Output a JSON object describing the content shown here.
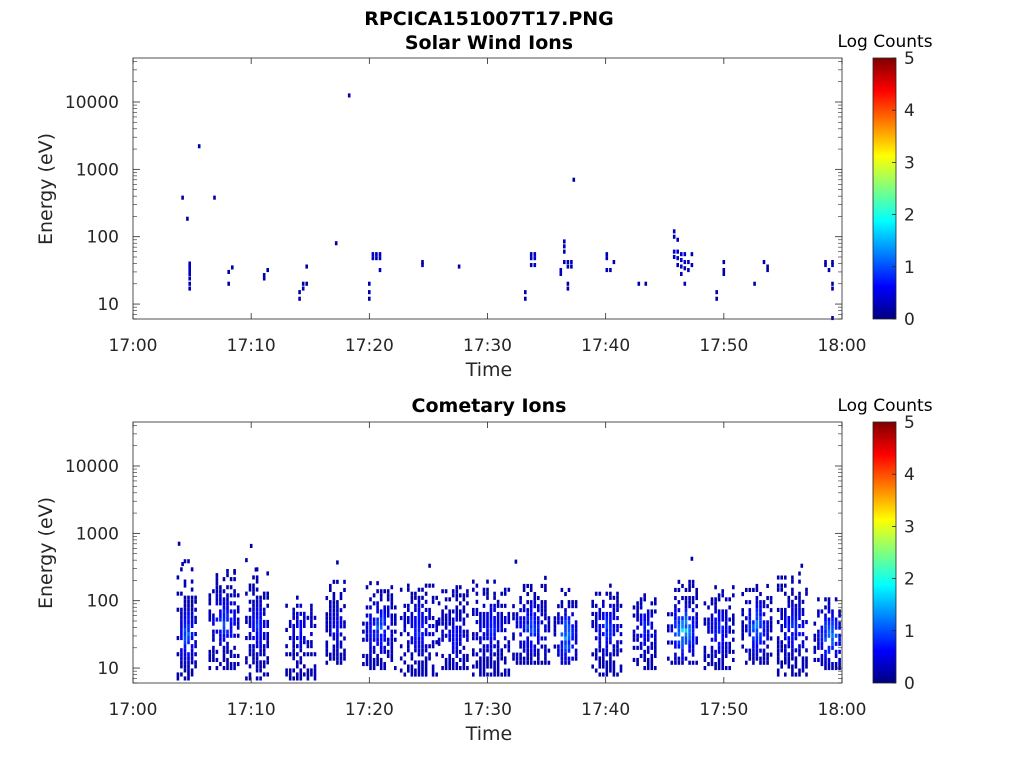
{
  "figure": {
    "title": "RPCICA151007T17.PNG"
  },
  "colorbar": {
    "stops": [
      "#00007f",
      "#0000ff",
      "#007fff",
      "#00ffff",
      "#7fff7f",
      "#ffff00",
      "#ff7f00",
      "#ff0000",
      "#7f0000"
    ]
  },
  "chart_data": [
    {
      "type": "heatmap",
      "title": "Solar Wind Ions",
      "xlabel": "Time",
      "ylabel": "Energy (eV)",
      "x_range_minutes_after_1700": [
        0,
        60
      ],
      "xticks": [
        "17:00",
        "17:10",
        "17:20",
        "17:30",
        "17:40",
        "17:50",
        "18:00"
      ],
      "xtick_values": [
        0,
        10,
        20,
        30,
        40,
        50,
        60
      ],
      "yscale": "log",
      "yrange": [
        6,
        45000
      ],
      "yticks": [
        "10",
        "100",
        "1000",
        "10000"
      ],
      "ytick_values": [
        10,
        100,
        1000,
        10000
      ],
      "colorbar": {
        "label": "Log Counts",
        "range": [
          0,
          5
        ],
        "ticks": [
          "0",
          "1",
          "2",
          "3",
          "4",
          "5"
        ],
        "tick_values": [
          0,
          1,
          2,
          3,
          4,
          5
        ]
      },
      "pixels_time_min_energy_eV_logcount": [
        [
          18.3,
          12500,
          0.2
        ],
        [
          5.6,
          2200,
          0.2
        ],
        [
          37.3,
          700,
          0.2
        ],
        [
          4.2,
          380,
          0.2
        ],
        [
          6.9,
          380,
          0.2
        ],
        [
          4.6,
          185,
          0.2
        ],
        [
          17.2,
          80,
          0.2
        ],
        [
          4.8,
          40,
          0.3
        ],
        [
          4.8,
          36,
          0.3
        ],
        [
          4.8,
          32,
          0.3
        ],
        [
          4.8,
          28,
          0.3
        ],
        [
          4.8,
          24,
          0.3
        ],
        [
          4.8,
          20,
          0.3
        ],
        [
          4.8,
          17,
          0.3
        ],
        [
          8.1,
          30,
          0.2
        ],
        [
          8.1,
          20,
          0.2
        ],
        [
          8.4,
          35,
          0.2
        ],
        [
          11.1,
          27,
          0.2
        ],
        [
          11.1,
          24,
          0.2
        ],
        [
          11.4,
          32,
          0.2
        ],
        [
          14.1,
          15,
          0.2
        ],
        [
          14.1,
          12,
          0.2
        ],
        [
          14.4,
          20,
          0.2
        ],
        [
          14.4,
          17,
          0.2
        ],
        [
          14.7,
          20,
          0.2
        ],
        [
          14.7,
          36,
          0.2
        ],
        [
          20.0,
          20,
          0.2
        ],
        [
          20.0,
          15,
          0.2
        ],
        [
          20.0,
          12,
          0.2
        ],
        [
          20.3,
          55,
          0.3
        ],
        [
          20.6,
          55,
          0.3
        ],
        [
          20.9,
          55,
          0.3
        ],
        [
          20.9,
          48,
          0.3
        ],
        [
          20.6,
          48,
          0.3
        ],
        [
          20.3,
          48,
          0.3
        ],
        [
          20.9,
          32,
          0.3
        ],
        [
          24.5,
          42,
          0.2
        ],
        [
          24.5,
          38,
          0.2
        ],
        [
          27.6,
          36,
          0.2
        ],
        [
          33.2,
          15,
          0.2
        ],
        [
          33.2,
          12,
          0.2
        ],
        [
          33.7,
          55,
          0.3
        ],
        [
          34.0,
          55,
          0.3
        ],
        [
          33.7,
          48,
          0.3
        ],
        [
          34.0,
          48,
          0.3
        ],
        [
          33.7,
          38,
          0.3
        ],
        [
          34.0,
          38,
          0.3
        ],
        [
          36.5,
          85,
          0.3
        ],
        [
          36.5,
          72,
          0.3
        ],
        [
          36.5,
          60,
          0.3
        ],
        [
          36.2,
          32,
          0.3
        ],
        [
          36.2,
          28,
          0.3
        ],
        [
          36.5,
          42,
          0.3
        ],
        [
          36.8,
          42,
          0.3
        ],
        [
          37.1,
          42,
          0.3
        ],
        [
          36.8,
          36,
          0.3
        ],
        [
          37.1,
          36,
          0.3
        ],
        [
          36.8,
          20,
          0.2
        ],
        [
          36.8,
          17,
          0.2
        ],
        [
          40.1,
          55,
          0.3
        ],
        [
          40.1,
          48,
          0.3
        ],
        [
          40.1,
          32,
          0.3
        ],
        [
          40.4,
          32,
          0.3
        ],
        [
          40.7,
          42,
          0.2
        ],
        [
          42.8,
          20,
          0.2
        ],
        [
          43.4,
          20,
          0.2
        ],
        [
          45.8,
          120,
          0.3
        ],
        [
          45.8,
          100,
          0.3
        ],
        [
          46.1,
          90,
          0.3
        ],
        [
          45.8,
          60,
          0.4
        ],
        [
          46.1,
          60,
          0.4
        ],
        [
          46.4,
          55,
          0.4
        ],
        [
          45.8,
          50,
          0.4
        ],
        [
          46.1,
          48,
          0.4
        ],
        [
          46.4,
          45,
          0.4
        ],
        [
          46.7,
          42,
          0.4
        ],
        [
          46.1,
          38,
          0.3
        ],
        [
          46.4,
          36,
          0.3
        ],
        [
          46.7,
          34,
          0.3
        ],
        [
          47.0,
          32,
          0.3
        ],
        [
          46.4,
          28,
          0.3
        ],
        [
          46.7,
          20,
          0.3
        ],
        [
          46.7,
          55,
          0.3
        ],
        [
          47.0,
          42,
          0.3
        ],
        [
          47.3,
          38,
          0.3
        ],
        [
          47.3,
          55,
          0.3
        ],
        [
          49.4,
          15,
          0.2
        ],
        [
          49.4,
          12,
          0.2
        ],
        [
          50.0,
          42,
          0.2
        ],
        [
          50.0,
          32,
          0.2
        ],
        [
          50.0,
          28,
          0.2
        ],
        [
          52.6,
          20,
          0.2
        ],
        [
          53.4,
          42,
          0.2
        ],
        [
          53.7,
          36,
          0.2
        ],
        [
          53.7,
          32,
          0.2
        ],
        [
          58.6,
          42,
          0.2
        ],
        [
          58.6,
          38,
          0.2
        ],
        [
          59.2,
          42,
          0.2
        ],
        [
          59.2,
          38,
          0.2
        ],
        [
          58.9,
          32,
          0.2
        ],
        [
          59.2,
          20,
          0.2
        ],
        [
          59.2,
          17,
          0.2
        ],
        [
          59.2,
          6.2,
          0.2
        ]
      ]
    },
    {
      "type": "heatmap",
      "title": "Cometary Ions",
      "xlabel": "Time",
      "ylabel": "Energy (eV)",
      "x_range_minutes_after_1700": [
        0,
        60
      ],
      "xticks": [
        "17:00",
        "17:10",
        "17:20",
        "17:30",
        "17:40",
        "17:50",
        "18:00"
      ],
      "xtick_values": [
        0,
        10,
        20,
        30,
        40,
        50,
        60
      ],
      "yscale": "log",
      "yrange": [
        6,
        45000
      ],
      "yticks": [
        "10",
        "100",
        "1000",
        "10000"
      ],
      "ytick_values": [
        10,
        100,
        1000,
        10000
      ],
      "colorbar": {
        "label": "Log Counts",
        "range": [
          0,
          5
        ],
        "ticks": [
          "0",
          "1",
          "2",
          "3",
          "4",
          "5"
        ],
        "tick_values": [
          0,
          1,
          2,
          3,
          4,
          5
        ]
      },
      "burst_clusters": [
        {
          "t": 4.6,
          "w": 0.8,
          "emin": 7,
          "emax": 420,
          "peak": 1.3,
          "core": 30
        },
        {
          "t": 7.8,
          "w": 1.3,
          "emin": 10,
          "emax": 320,
          "peak": 1.0,
          "core": 50
        },
        {
          "t": 10.6,
          "w": 1.0,
          "emin": 7,
          "emax": 300,
          "peak": 0.8,
          "core": 40
        },
        {
          "t": 14.2,
          "w": 1.2,
          "emin": 7,
          "emax": 120,
          "peak": 0.5,
          "core": 40
        },
        {
          "t": 17.2,
          "w": 0.8,
          "emin": 12,
          "emax": 200,
          "peak": 0.5,
          "core": 40
        },
        {
          "t": 20.9,
          "w": 1.4,
          "emin": 10,
          "emax": 200,
          "peak": 1.0,
          "core": 40
        },
        {
          "t": 24.2,
          "w": 1.5,
          "emin": 8,
          "emax": 220,
          "peak": 0.8,
          "core": 40
        },
        {
          "t": 27.2,
          "w": 1.3,
          "emin": 10,
          "emax": 180,
          "peak": 0.5,
          "core": 30
        },
        {
          "t": 30.4,
          "w": 1.6,
          "emin": 8,
          "emax": 220,
          "peak": 0.7,
          "core": 40
        },
        {
          "t": 33.7,
          "w": 1.5,
          "emin": 12,
          "emax": 220,
          "peak": 1.0,
          "core": 40
        },
        {
          "t": 36.7,
          "w": 1.0,
          "emin": 12,
          "emax": 160,
          "peak": 1.5,
          "core": 30
        },
        {
          "t": 40.2,
          "w": 1.3,
          "emin": 8,
          "emax": 180,
          "peak": 0.9,
          "core": 40
        },
        {
          "t": 43.4,
          "w": 1.0,
          "emin": 10,
          "emax": 130,
          "peak": 0.7,
          "core": 40
        },
        {
          "t": 46.6,
          "w": 1.3,
          "emin": 12,
          "emax": 200,
          "peak": 1.9,
          "core": 35
        },
        {
          "t": 49.6,
          "w": 1.2,
          "emin": 10,
          "emax": 180,
          "peak": 0.8,
          "core": 35
        },
        {
          "t": 52.8,
          "w": 1.2,
          "emin": 12,
          "emax": 200,
          "peak": 1.3,
          "core": 40
        },
        {
          "t": 55.9,
          "w": 1.3,
          "emin": 8,
          "emax": 280,
          "peak": 0.8,
          "core": 40
        },
        {
          "t": 59.0,
          "w": 1.3,
          "emin": 10,
          "emax": 130,
          "peak": 1.4,
          "core": 30
        }
      ],
      "sparse_pixels_time_min_energy_eV_logcount": [
        [
          3.9,
          700,
          0.2
        ],
        [
          10.0,
          650,
          0.2
        ],
        [
          9.6,
          400,
          0.2
        ],
        [
          17.3,
          370,
          0.2
        ],
        [
          25.1,
          330,
          0.2
        ],
        [
          32.4,
          380,
          0.2
        ],
        [
          47.3,
          420,
          0.2
        ],
        [
          56.6,
          330,
          0.2
        ],
        [
          4.2,
          350,
          0.2
        ],
        [
          10.4,
          290,
          0.2
        ],
        [
          8.6,
          260,
          0.2
        ]
      ]
    }
  ]
}
